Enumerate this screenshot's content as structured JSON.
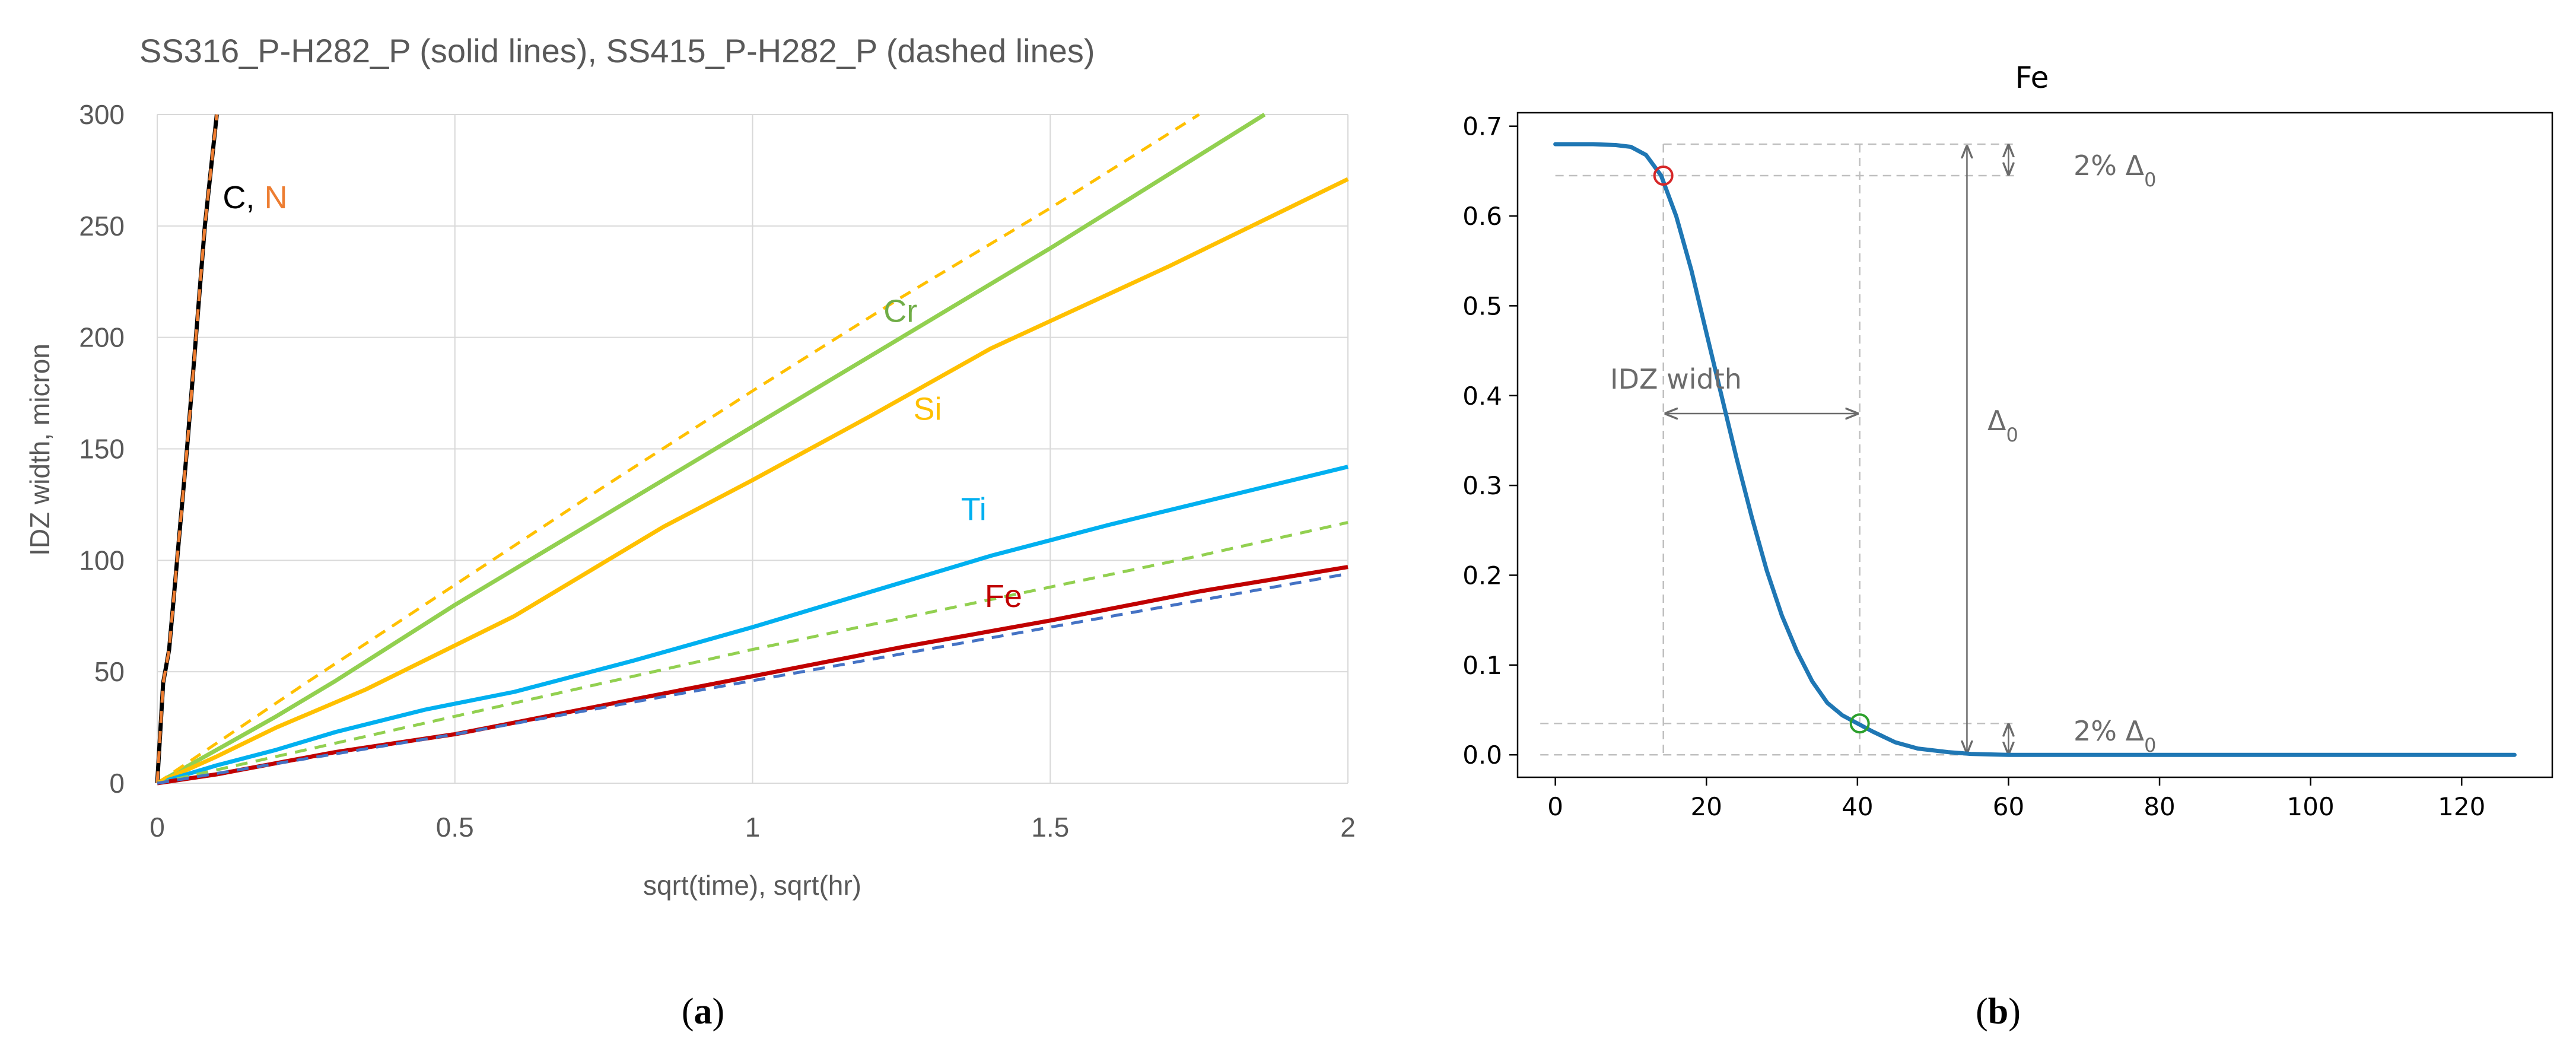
{
  "chart_data": [
    {
      "type": "line",
      "panel": "a",
      "title": "SS316_P-H282_P (solid lines), SS415_P-H282_P (dashed lines)",
      "xlabel": "sqrt(time), sqrt(hr)",
      "ylabel": "IDZ width, micron",
      "xlim": [
        0,
        2
      ],
      "ylim": [
        0,
        300
      ],
      "xticks": [
        "0",
        "0.5",
        "1",
        "1.5",
        "2"
      ],
      "yticks": [
        "0",
        "50",
        "100",
        "150",
        "200",
        "250",
        "300"
      ],
      "grid": true,
      "series": [
        {
          "name": "C",
          "style": "solid",
          "color": "#000000",
          "x": [
            0,
            0.01,
            0.02,
            0.05,
            0.08,
            0.1
          ],
          "y": [
            0,
            45,
            60,
            150,
            250,
            300
          ]
        },
        {
          "name": "N",
          "style": "dashed",
          "color": "#ED7D31",
          "x": [
            0,
            0.01,
            0.02,
            0.05,
            0.08,
            0.1
          ],
          "y": [
            0,
            45,
            60,
            150,
            250,
            300
          ]
        },
        {
          "name": "Cr",
          "style": "solid",
          "color": "#92D050",
          "x": [
            0,
            0.1,
            0.2,
            0.3,
            0.5,
            0.75,
            1.0,
            1.25,
            1.5,
            1.86
          ],
          "y": [
            0,
            15,
            30,
            46,
            80,
            120,
            160,
            200,
            240,
            300
          ]
        },
        {
          "name": "Si",
          "style": "solid",
          "color": "#FFC000",
          "x": [
            0,
            0.1,
            0.2,
            0.35,
            0.6,
            0.85,
            1.0,
            1.2,
            1.4,
            1.7,
            2.0
          ],
          "y": [
            0,
            12,
            25,
            42,
            75,
            115,
            136,
            165,
            195,
            232,
            271
          ]
        },
        {
          "name": "Ti",
          "style": "solid",
          "color": "#00B0F0",
          "x": [
            0,
            0.1,
            0.2,
            0.3,
            0.45,
            0.6,
            0.8,
            1.0,
            1.2,
            1.4,
            1.6,
            1.8,
            2.0
          ],
          "y": [
            0,
            8,
            15,
            23,
            33,
            41,
            55,
            70,
            86,
            102,
            116,
            129,
            142
          ]
        },
        {
          "name": "Fe",
          "style": "solid",
          "color": "#C00000",
          "x": [
            0,
            0.1,
            0.2,
            0.3,
            0.5,
            0.75,
            1.0,
            1.25,
            1.5,
            1.75,
            2.0
          ],
          "y": [
            0,
            4,
            9,
            14,
            22,
            35,
            48,
            61,
            73,
            86,
            97
          ]
        },
        {
          "name": "Cr",
          "style": "dashed",
          "color": "#92D050",
          "x": [
            0,
            0.25,
            0.5,
            0.75,
            1.0,
            1.25,
            1.5,
            1.75,
            2.0
          ],
          "y": [
            0,
            15,
            30,
            45,
            60,
            74,
            88,
            102,
            117
          ]
        },
        {
          "name": "Si",
          "style": "dashed",
          "color": "#FFC000",
          "x": [
            0,
            0.25,
            0.5,
            0.75,
            1.0,
            1.25,
            1.5,
            1.75
          ],
          "y": [
            0,
            45,
            89,
            133,
            176,
            218,
            258,
            300
          ]
        },
        {
          "name": "Fe",
          "style": "dashed",
          "color": "#4472C4",
          "x": [
            0,
            0.25,
            0.5,
            0.75,
            1.0,
            1.25,
            1.5,
            1.75,
            2.0
          ],
          "y": [
            0,
            11,
            22,
            34,
            46,
            58,
            70,
            82,
            94
          ]
        }
      ],
      "annotations": [
        {
          "text": "C,",
          "color": "#000000",
          "x": 0.11,
          "y": 258
        },
        {
          "text": "N",
          "color": "#ED7D31",
          "x": 0.18,
          "y": 258
        },
        {
          "text": "Cr",
          "color": "#70AD47",
          "x": 1.22,
          "y": 207
        },
        {
          "text": "Si",
          "color": "#FFC000",
          "x": 1.27,
          "y": 163
        },
        {
          "text": "Ti",
          "color": "#00B0F0",
          "x": 1.35,
          "y": 118
        },
        {
          "text": "Fe",
          "color": "#C00000",
          "x": 1.39,
          "y": 79
        }
      ]
    },
    {
      "type": "line",
      "panel": "b",
      "title": "Fe",
      "xlim": [
        -5,
        132
      ],
      "ylim": [
        -0.025,
        0.715
      ],
      "xticks": [
        0,
        20,
        40,
        60,
        80,
        100,
        120
      ],
      "yticks": [
        "0.0",
        "0.1",
        "0.2",
        "0.3",
        "0.4",
        "0.5",
        "0.6",
        "0.7"
      ],
      "series": [
        {
          "name": "Fe",
          "color": "#1F77B4",
          "x": [
            0,
            5,
            8,
            10,
            12,
            14,
            16,
            18,
            20,
            22,
            24,
            26,
            28,
            30,
            32,
            34,
            36,
            38,
            40,
            42,
            45,
            48,
            52,
            55,
            60,
            80,
            100,
            127
          ],
          "y": [
            0.68,
            0.68,
            0.679,
            0.677,
            0.668,
            0.645,
            0.6,
            0.54,
            0.47,
            0.4,
            0.33,
            0.265,
            0.205,
            0.155,
            0.115,
            0.082,
            0.058,
            0.044,
            0.035,
            0.026,
            0.014,
            0.007,
            0.003,
            0.001,
            0,
            0,
            0,
            0
          ]
        }
      ],
      "markers": [
        {
          "x": 14.3,
          "y": 0.645,
          "color": "#D62728"
        },
        {
          "x": 40.3,
          "y": 0.035,
          "color": "#2CA02C"
        }
      ],
      "annotations": {
        "top_pct": "2% Δ",
        "bottom_pct": "2% Δ",
        "delta": "Δ",
        "subscript": "0",
        "idz": "IDZ width"
      }
    }
  ],
  "captions": {
    "a": {
      "open": "(",
      "letter": "a",
      "close": ")"
    },
    "b": {
      "open": "(",
      "letter": "b",
      "close": ")"
    }
  }
}
